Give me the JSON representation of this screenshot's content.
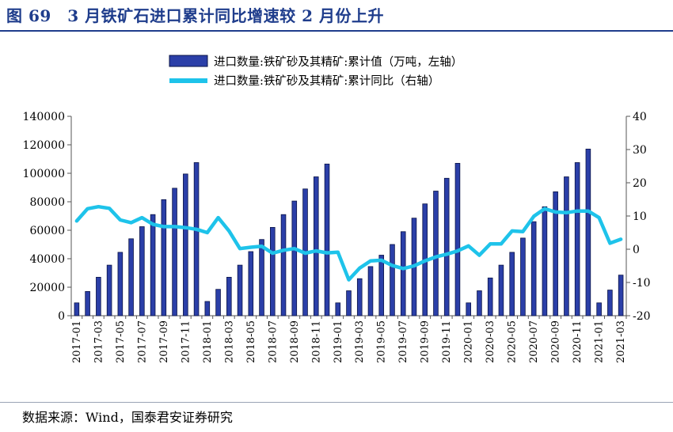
{
  "figure": {
    "title": "图 69　3 月铁矿石进口累计同比增速较 2 月份上升",
    "source": "数据来源：Wind，国泰君安证券研究"
  },
  "colors": {
    "title": "#1f3d8c",
    "bar_fill": "#2b3fa8",
    "bar_stroke": "#0b1447",
    "line": "#1ec3ea",
    "axis": "#555555"
  },
  "chart_data": {
    "type": "bar",
    "title": "",
    "categories": [
      "2017-01",
      "2017-02",
      "2017-03",
      "2017-04",
      "2017-05",
      "2017-06",
      "2017-07",
      "2017-08",
      "2017-09",
      "2017-10",
      "2017-11",
      "2017-12",
      "2018-01",
      "2018-02",
      "2018-03",
      "2018-04",
      "2018-05",
      "2018-06",
      "2018-07",
      "2018-08",
      "2018-09",
      "2018-10",
      "2018-11",
      "2018-12",
      "2019-01",
      "2019-02",
      "2019-03",
      "2019-04",
      "2019-05",
      "2019-06",
      "2019-07",
      "2019-08",
      "2019-09",
      "2019-10",
      "2019-11",
      "2019-12",
      "2020-01",
      "2020-02",
      "2020-03",
      "2020-04",
      "2020-05",
      "2020-06",
      "2020-07",
      "2020-08",
      "2020-09",
      "2020-10",
      "2020-11",
      "2020-12",
      "2021-01",
      "2021-02",
      "2021-03"
    ],
    "x_tick_labels": [
      "2017-01",
      "2017-03",
      "2017-05",
      "2017-07",
      "2017-09",
      "2017-11",
      "2018-01",
      "2018-03",
      "2018-05",
      "2018-07",
      "2018-09",
      "2018-11",
      "2019-01",
      "2019-03",
      "2019-05",
      "2019-07",
      "2019-09",
      "2019-11",
      "2020-01",
      "2020-03",
      "2020-05",
      "2020-07",
      "2020-09",
      "2020-11",
      "2021-01",
      "2021-03"
    ],
    "series": [
      {
        "name": "进口数量:铁矿砂及其精矿:累计值（万吨，左轴）",
        "type": "bar",
        "axis": "left",
        "values": [
          9000,
          17000,
          27000,
          35500,
          44500,
          54000,
          62500,
          71000,
          81500,
          89500,
          99500,
          107500,
          10000,
          18500,
          27000,
          35500,
          45000,
          53500,
          62000,
          71000,
          80500,
          89000,
          97500,
          106500,
          9000,
          17500,
          26000,
          34500,
          42500,
          50000,
          59000,
          68500,
          78500,
          87500,
          96500,
          107000,
          9000,
          17500,
          26500,
          35500,
          44500,
          54500,
          66000,
          76500,
          87000,
          97500,
          107500,
          117000,
          9000,
          18000,
          28500
        ]
      },
      {
        "name": "进口数量:铁矿砂及其精矿:累计同比（右轴）",
        "type": "line",
        "axis": "right",
        "values": [
          8.5,
          12.2,
          12.8,
          12.3,
          8.8,
          8.0,
          9.5,
          7.5,
          6.8,
          6.8,
          6.5,
          6.0,
          5.0,
          9.5,
          5.5,
          0.2,
          0.6,
          0.9,
          -1.2,
          -0.3,
          0.2,
          -1.2,
          -0.5,
          -1.1,
          -0.9,
          -9.2,
          -5.7,
          -3.5,
          -3.3,
          -4.9,
          -5.8,
          -5.0,
          -3.5,
          -2.3,
          -1.5,
          -0.5,
          1.0,
          -1.8,
          1.6,
          1.6,
          5.5,
          5.3,
          9.9,
          12.2,
          11.2,
          11.0,
          11.5,
          11.5,
          9.5,
          1.8,
          3.0
        ]
      }
    ],
    "y_left": {
      "min": 0,
      "max": 140000,
      "ticks": [
        "0",
        "20000",
        "40000",
        "60000",
        "80000",
        "100000",
        "120000",
        "140000"
      ]
    },
    "y_right": {
      "min": -20,
      "max": 40,
      "ticks": [
        "-20",
        "-10",
        "0",
        "10",
        "20",
        "30",
        "40"
      ]
    },
    "legend": {
      "position": "top",
      "bar_label": "进口数量:铁矿砂及其精矿:累计值（万吨，左轴）",
      "line_label": "进口数量:铁矿砂及其精矿:累计同比（右轴）"
    },
    "grid": false
  }
}
